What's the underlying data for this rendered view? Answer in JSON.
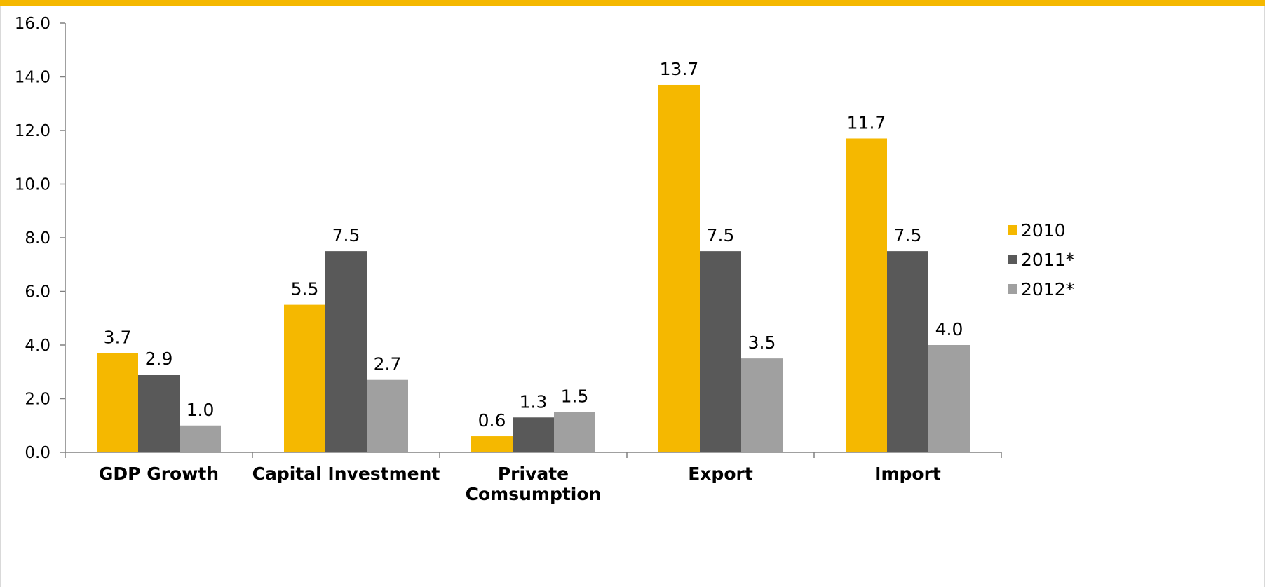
{
  "colors": {
    "top_bar": "#F5B800",
    "frame_border": "#d9d9d9",
    "axis": "#808080"
  },
  "chart_data": {
    "type": "bar",
    "title": "",
    "xlabel": "",
    "ylabel": "",
    "ylim": [
      0,
      16
    ],
    "y_ticks": [
      "0.0",
      "2.0",
      "4.0",
      "6.0",
      "8.0",
      "10.0",
      "12.0",
      "14.0",
      "16.0"
    ],
    "grid": false,
    "legend_position": "right",
    "categories": [
      [
        "GDP Growth"
      ],
      [
        "Capital Investment"
      ],
      [
        "Private",
        "Comsumption"
      ],
      [
        "Export"
      ],
      [
        "Import"
      ]
    ],
    "series": [
      {
        "name": "2010",
        "color": "#F5B800",
        "values": [
          3.7,
          5.5,
          0.6,
          13.7,
          11.7
        ],
        "labels": [
          "3.7",
          "5.5",
          "0.6",
          "13.7",
          "11.7"
        ]
      },
      {
        "name": "2011*",
        "color": "#595959",
        "values": [
          2.9,
          7.5,
          1.3,
          7.5,
          7.5
        ],
        "labels": [
          "2.9",
          "7.5",
          "1.3",
          "7.5",
          "7.5"
        ]
      },
      {
        "name": "2012*",
        "color": "#A0A0A0",
        "values": [
          1.0,
          2.7,
          1.5,
          3.5,
          4.0
        ],
        "labels": [
          "1.0",
          "2.7",
          "1.5",
          "3.5",
          "4.0"
        ]
      }
    ]
  }
}
